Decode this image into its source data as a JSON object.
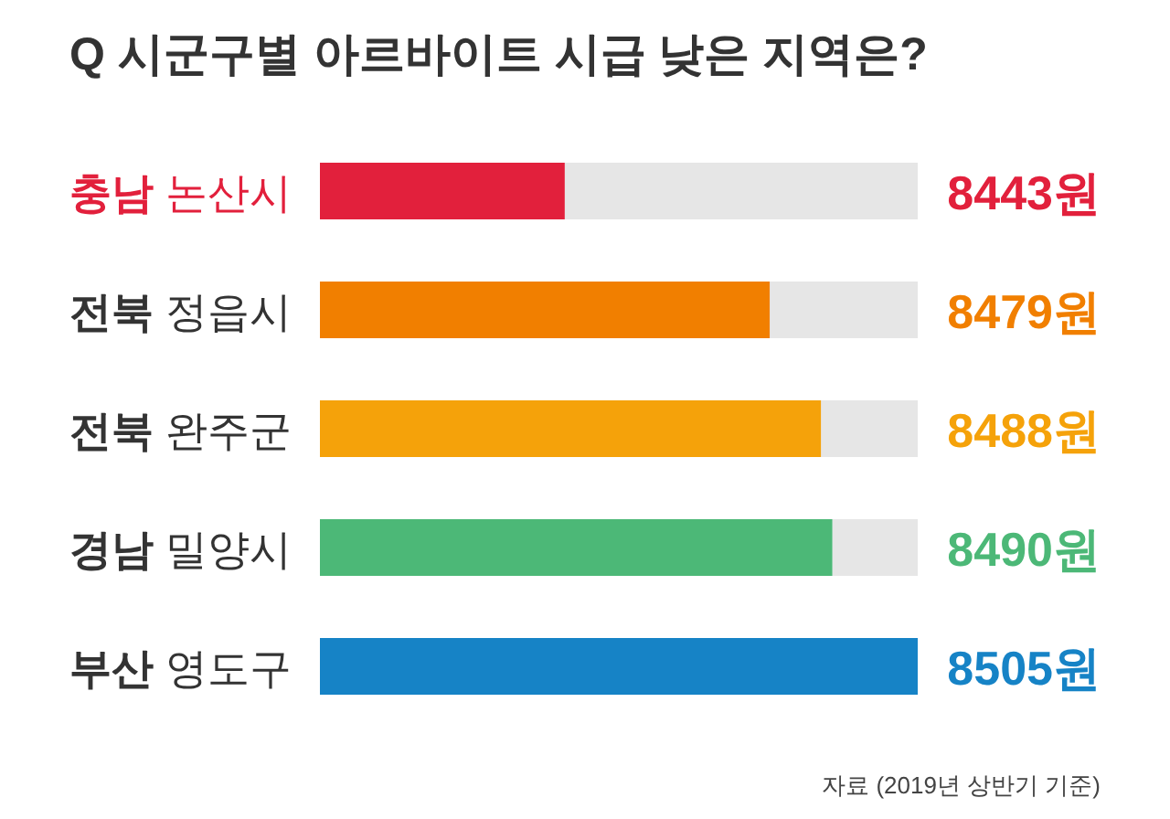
{
  "chart_data": {
    "type": "bar",
    "orientation": "horizontal",
    "title": "Q 시군구별 아르바이트 시급 낮은 지역은?",
    "categories": [
      "충남 논산시",
      "전북 정읍시",
      "전북 완주군",
      "경남 밀양시",
      "부산 영도구"
    ],
    "values": [
      8443,
      8479,
      8488,
      8490,
      8505
    ],
    "colors": [
      "#e2203c",
      "#f17f00",
      "#f5a20a",
      "#4cb877",
      "#1683c6"
    ],
    "value_labels": [
      "8443원",
      "8479원",
      "8488원",
      "8490원",
      "8505원"
    ],
    "xlim": [
      8400,
      8505
    ],
    "annotations": [
      "자료 (2019년 상반기 기준)"
    ]
  }
}
